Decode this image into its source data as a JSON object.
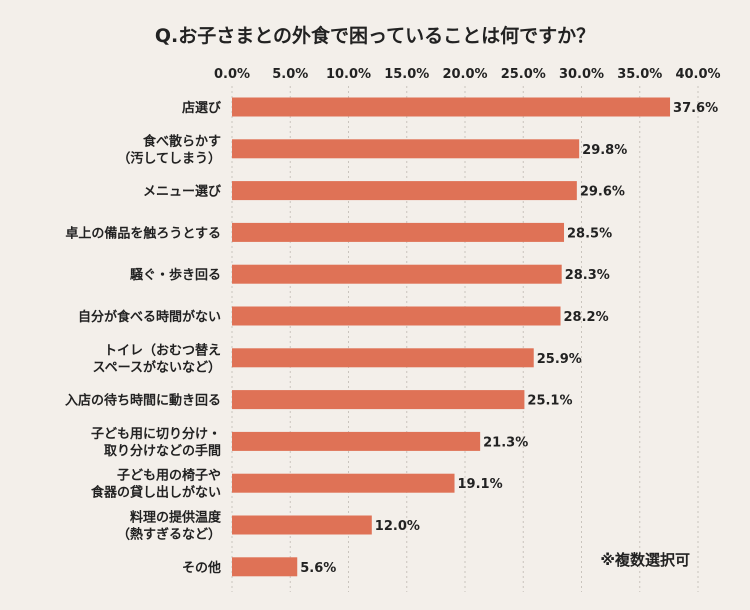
{
  "chart_data": {
    "type": "bar",
    "orientation": "horizontal",
    "title": "Q.お子さまとの外食で困っていることは何ですか？",
    "xlim": [
      0,
      40
    ],
    "xticks": [
      "0.0%",
      "5.0%",
      "10.0%",
      "15.0%",
      "20.0%",
      "25.0%",
      "30.0%",
      "35.0%",
      "40.0%"
    ],
    "grid": true,
    "categories": [
      [
        "店選び"
      ],
      [
        "食べ散らかす",
        "（汚してしまう）"
      ],
      [
        "メニュー選び"
      ],
      [
        "卓上の備品を触ろうとする"
      ],
      [
        "騒ぐ・歩き回る"
      ],
      [
        "自分が食べる時間がない"
      ],
      [
        "トイレ（おむつ替え",
        "スペースがないなど）"
      ],
      [
        "入店の待ち時間に動き回る"
      ],
      [
        "子ども用に切り分け・",
        "取り分けなどの手間"
      ],
      [
        "子ども用の椅子や",
        "食器の貸し出しがない"
      ],
      [
        "料理の提供温度",
        "（熱すぎるなど）"
      ],
      [
        "その他"
      ]
    ],
    "values": [
      37.6,
      29.8,
      29.6,
      28.5,
      28.3,
      28.2,
      25.9,
      25.1,
      21.3,
      19.1,
      12.0,
      5.6
    ],
    "value_labels": [
      "37.6%",
      "29.8%",
      "29.6%",
      "28.5%",
      "28.3%",
      "28.2%",
      "25.9%",
      "25.1%",
      "21.3%",
      "19.1%",
      "12.0%",
      "5.6%"
    ],
    "note": "※複数選択可",
    "colors": {
      "bar": "#df7256",
      "background": "#f3efea"
    }
  }
}
